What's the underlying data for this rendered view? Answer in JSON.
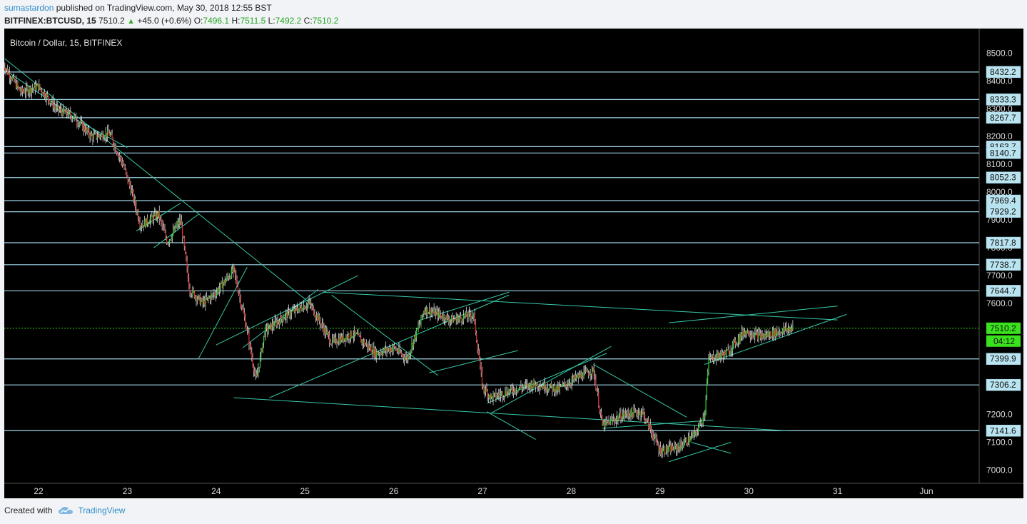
{
  "header": {
    "author": "sumastardon",
    "published_text": "published on TradingView.com, May 30, 2018 12:55 BST",
    "symbol": "BITFINEX:BTCUSD, 15",
    "price": "7510.2",
    "change": "+45.0 (+0.6%)",
    "o_label": "O:",
    "o": "7496.1",
    "h_label": "H:",
    "h": "7511.5",
    "l_label": "L:",
    "l": "7492.2",
    "c_label": "C:",
    "c": "7510.2"
  },
  "footer": {
    "created_with": "Created with",
    "brand": "TradingView"
  },
  "colors": {
    "background": "#000000",
    "level_line": "#9fd4e6",
    "trend_line": "#38c9a9",
    "candle_up": "#2fd12f",
    "candle_down": "#e23131",
    "label_bg": "#b9e4f0",
    "current_price_bg": "#39e21d",
    "current_price_line": "#39d11f"
  },
  "chart_data": {
    "type": "candlestick",
    "title": "Bitcoin / Dollar, 15, BITFINEX",
    "x_labels": [
      "22",
      "23",
      "24",
      "25",
      "26",
      "27",
      "28",
      "29",
      "30",
      "31",
      "Jun"
    ],
    "y_ticks": [
      7000.0,
      7100.0,
      7200.0,
      7300.0,
      7400.0,
      7500.0,
      7600.0,
      7700.0,
      7800.0,
      7900.0,
      8000.0,
      8100.0,
      8200.0,
      8300.0,
      8400.0,
      8500.0
    ],
    "ylim": [
      6960,
      8540
    ],
    "horizontal_levels": [
      8432.2,
      8333.3,
      8267.7,
      8163.7,
      8140.7,
      8052.3,
      7969.4,
      7929.2,
      7817.8,
      7738.7,
      7644.7,
      7399.9,
      7306.2,
      7141.6
    ],
    "current_price": 7510.2,
    "countdown": "04:12",
    "price_path": [
      {
        "x": 21.6,
        "y": 8460
      },
      {
        "x": 21.8,
        "y": 8360
      },
      {
        "x": 22.0,
        "y": 8380
      },
      {
        "x": 22.2,
        "y": 8300
      },
      {
        "x": 22.4,
        "y": 8270
      },
      {
        "x": 22.6,
        "y": 8200
      },
      {
        "x": 22.8,
        "y": 8210
      },
      {
        "x": 22.95,
        "y": 8100
      },
      {
        "x": 23.05,
        "y": 8000
      },
      {
        "x": 23.15,
        "y": 7880
      },
      {
        "x": 23.35,
        "y": 7920
      },
      {
        "x": 23.45,
        "y": 7820
      },
      {
        "x": 23.6,
        "y": 7900
      },
      {
        "x": 23.7,
        "y": 7650
      },
      {
        "x": 23.85,
        "y": 7600
      },
      {
        "x": 24.0,
        "y": 7640
      },
      {
        "x": 24.2,
        "y": 7720
      },
      {
        "x": 24.35,
        "y": 7500
      },
      {
        "x": 24.45,
        "y": 7320
      },
      {
        "x": 24.55,
        "y": 7500
      },
      {
        "x": 24.8,
        "y": 7560
      },
      {
        "x": 25.05,
        "y": 7600
      },
      {
        "x": 25.3,
        "y": 7460
      },
      {
        "x": 25.55,
        "y": 7490
      },
      {
        "x": 25.8,
        "y": 7420
      },
      {
        "x": 26.0,
        "y": 7440
      },
      {
        "x": 26.15,
        "y": 7400
      },
      {
        "x": 26.35,
        "y": 7580
      },
      {
        "x": 26.65,
        "y": 7540
      },
      {
        "x": 26.9,
        "y": 7560
      },
      {
        "x": 27.0,
        "y": 7300
      },
      {
        "x": 27.1,
        "y": 7260
      },
      {
        "x": 27.35,
        "y": 7290
      },
      {
        "x": 27.6,
        "y": 7310
      },
      {
        "x": 27.85,
        "y": 7290
      },
      {
        "x": 28.05,
        "y": 7330
      },
      {
        "x": 28.25,
        "y": 7360
      },
      {
        "x": 28.35,
        "y": 7160
      },
      {
        "x": 28.6,
        "y": 7200
      },
      {
        "x": 28.8,
        "y": 7210
      },
      {
        "x": 29.0,
        "y": 7070
      },
      {
        "x": 29.2,
        "y": 7080
      },
      {
        "x": 29.4,
        "y": 7130
      },
      {
        "x": 29.5,
        "y": 7200
      },
      {
        "x": 29.55,
        "y": 7400
      },
      {
        "x": 29.75,
        "y": 7420
      },
      {
        "x": 29.95,
        "y": 7500
      },
      {
        "x": 30.15,
        "y": 7480
      },
      {
        "x": 30.35,
        "y": 7500
      },
      {
        "x": 30.5,
        "y": 7510
      }
    ],
    "trendlines": [
      {
        "from": [
          21.62,
          8480
        ],
        "to": [
          25.1,
          7590
        ]
      },
      {
        "from": [
          25.2,
          7640
        ],
        "to": [
          31.0,
          7540
        ]
      },
      {
        "from": [
          24.2,
          7260
        ],
        "to": [
          30.45,
          7141
        ]
      },
      {
        "from": [
          24.6,
          7260
        ],
        "to": [
          27.3,
          7630
        ]
      },
      {
        "from": [
          24.0,
          7450
        ],
        "to": [
          25.6,
          7700
        ]
      },
      {
        "from": [
          27.05,
          7210
        ],
        "to": [
          27.6,
          7110
        ]
      },
      {
        "from": [
          27.05,
          7240
        ],
        "to": [
          28.4,
          7420
        ]
      },
      {
        "from": [
          27.1,
          7205
        ],
        "to": [
          28.45,
          7445
        ]
      },
      {
        "from": [
          28.25,
          7380
        ],
        "to": [
          29.3,
          7190
        ]
      },
      {
        "from": [
          28.35,
          7150
        ],
        "to": [
          29.6,
          7180
        ]
      },
      {
        "from": [
          29.1,
          7030
        ],
        "to": [
          29.8,
          7100
        ]
      },
      {
        "from": [
          29.35,
          7100
        ],
        "to": [
          29.8,
          7060
        ]
      },
      {
        "from": [
          29.5,
          7380
        ],
        "to": [
          31.1,
          7560
        ]
      },
      {
        "from": [
          29.1,
          7530
        ],
        "to": [
          31.0,
          7590
        ]
      },
      {
        "from": [
          21.62,
          8440
        ],
        "to": [
          22.4,
          8270
        ]
      },
      {
        "from": [
          22.2,
          8300
        ],
        "to": [
          23.0,
          8160
        ]
      },
      {
        "from": [
          23.1,
          7860
        ],
        "to": [
          23.6,
          7960
        ]
      },
      {
        "from": [
          23.3,
          7800
        ],
        "to": [
          23.8,
          7920
        ]
      },
      {
        "from": [
          23.8,
          7400
        ],
        "to": [
          24.35,
          7730
        ]
      },
      {
        "from": [
          24.3,
          7440
        ],
        "to": [
          25.15,
          7650
        ]
      },
      {
        "from": [
          25.3,
          7630
        ],
        "to": [
          26.5,
          7340
        ]
      },
      {
        "from": [
          26.3,
          7540
        ],
        "to": [
          27.3,
          7640
        ]
      },
      {
        "from": [
          26.4,
          7350
        ],
        "to": [
          27.4,
          7430
        ]
      }
    ]
  }
}
